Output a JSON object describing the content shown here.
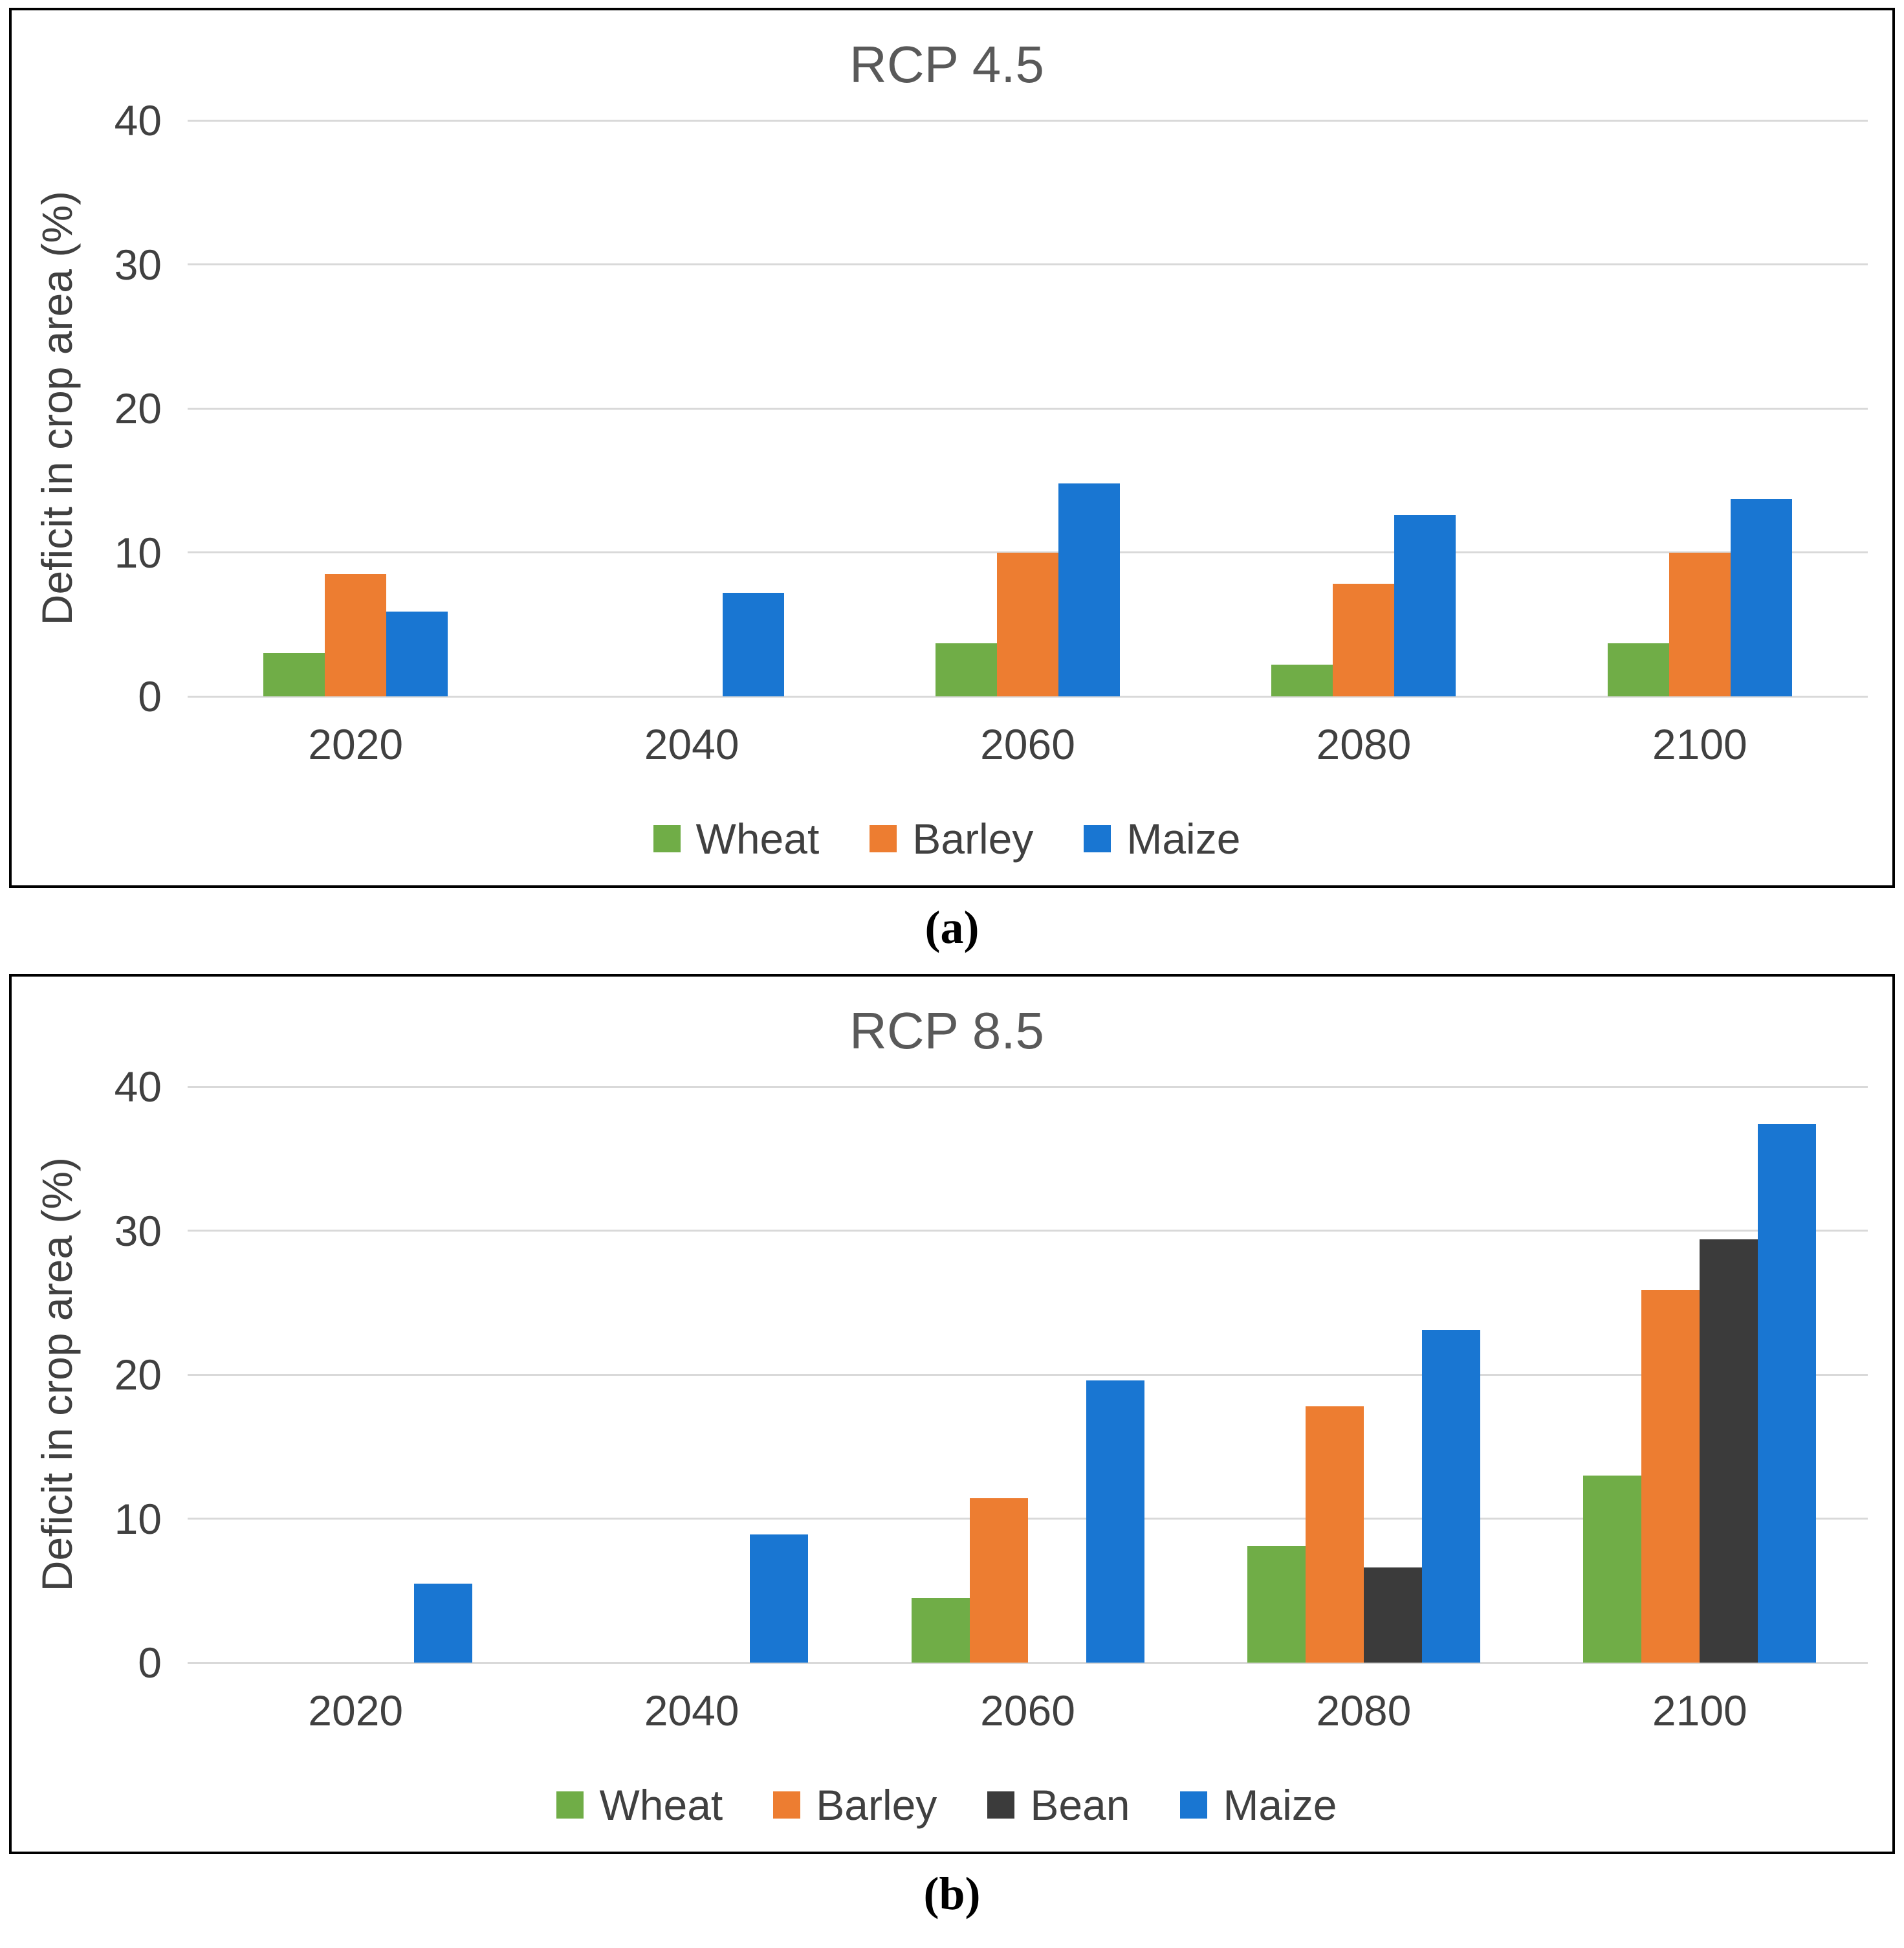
{
  "chart_data": [
    {
      "type": "bar",
      "title": "RCP 4.5",
      "ylabel": "Deficit in crop area (%)",
      "ylim": [
        0,
        40
      ],
      "yticks": [
        0,
        10,
        20,
        30,
        40
      ],
      "grid": "horizontal",
      "legend_position": "bottom",
      "categories": [
        "2020",
        "2040",
        "2060",
        "2080",
        "2100"
      ],
      "series": [
        {
          "name": "Wheat",
          "color": "#70AD47",
          "values": [
            3.0,
            0,
            3.7,
            2.2,
            3.7
          ]
        },
        {
          "name": "Barley",
          "color": "#ED7D31",
          "values": [
            8.5,
            0,
            10.0,
            7.8,
            10.0
          ]
        },
        {
          "name": "Maize",
          "color": "#1976D2",
          "values": [
            5.9,
            7.2,
            14.8,
            12.6,
            13.7
          ]
        }
      ],
      "caption": "(a)"
    },
    {
      "type": "bar",
      "title": "RCP 8.5",
      "ylabel": "Deficit in crop area (%)",
      "ylim": [
        0,
        40
      ],
      "yticks": [
        0,
        10,
        20,
        30,
        40
      ],
      "grid": "horizontal",
      "legend_position": "bottom",
      "categories": [
        "2020",
        "2040",
        "2060",
        "2080",
        "2100"
      ],
      "series": [
        {
          "name": "Wheat",
          "color": "#70AD47",
          "values": [
            0,
            0,
            4.5,
            8.1,
            13.0
          ]
        },
        {
          "name": "Barley",
          "color": "#ED7D31",
          "values": [
            0,
            0,
            11.4,
            17.8,
            25.9
          ]
        },
        {
          "name": "Bean",
          "color": "#3B3B3B",
          "values": [
            0,
            0,
            0,
            6.6,
            29.4
          ]
        },
        {
          "name": "Maize",
          "color": "#1976D2",
          "values": [
            5.5,
            8.9,
            19.6,
            23.1,
            37.4
          ]
        }
      ],
      "caption": "(b)"
    }
  ]
}
